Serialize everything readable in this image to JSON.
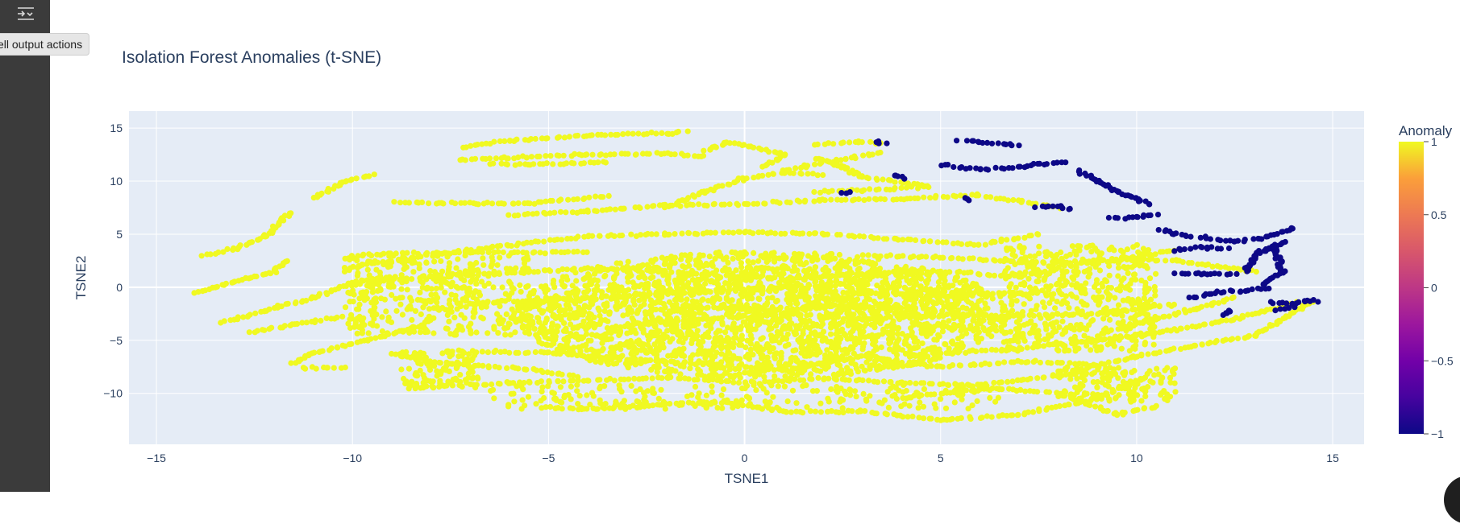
{
  "gutter": {
    "tooltip": "cell output actions",
    "button_icon": "output-actions-icon"
  },
  "colors": {
    "plot_bg": "#e5ecf6",
    "grid": "#ffffff",
    "normal": "#f0f921",
    "anomaly": "#0d0887",
    "text": "#2a3f5f"
  },
  "chart_data": {
    "type": "scatter",
    "title": "Isolation Forest Anomalies (t-SNE)",
    "xlabel": "TSNE1",
    "ylabel": "TSNE2",
    "xlim": [
      -15.7,
      15.8
    ],
    "ylim": [
      -14.8,
      16.6
    ],
    "xticks": [
      -15,
      -10,
      -5,
      0,
      5,
      10,
      15
    ],
    "yticks": [
      -10,
      -5,
      0,
      5,
      10,
      15
    ],
    "grid": true,
    "colorbar": {
      "title": "Anomaly",
      "colorscale": "plasma",
      "range": [
        -1,
        1
      ],
      "ticks": [
        1,
        0.5,
        0,
        -0.5,
        -1
      ],
      "tick_labels": [
        "1",
        "0.5",
        "0",
        "−0.5",
        "−1"
      ]
    },
    "series": [
      {
        "anomaly": 1,
        "approx_points": 4200,
        "curves": [
          [
            [
              -14,
              -0.5
            ],
            [
              -13,
              0.5
            ],
            [
              -12,
              1.5
            ],
            [
              -11.7,
              2.5
            ]
          ],
          [
            [
              -13.8,
              3
            ],
            [
              -13,
              3.6
            ],
            [
              -12.2,
              4.8
            ],
            [
              -11.6,
              7
            ]
          ],
          [
            [
              -11,
              8.4
            ],
            [
              -10.2,
              10
            ],
            [
              -9.5,
              10.6
            ]
          ],
          [
            [
              -13.3,
              -3.3
            ],
            [
              -12.2,
              -2.2
            ],
            [
              -11,
              -1
            ],
            [
              -10,
              0.4
            ],
            [
              -9,
              1
            ]
          ],
          [
            [
              -12.6,
              -4.3
            ],
            [
              -11.4,
              -3.5
            ],
            [
              -10.3,
              -2.8
            ]
          ],
          [
            [
              -11.5,
              -7.2
            ],
            [
              -11,
              -6.2
            ],
            [
              -9.6,
              -5
            ],
            [
              -8.2,
              -3.6
            ]
          ],
          [
            [
              -11.3,
              -7.6
            ],
            [
              -10.2,
              -7.6
            ]
          ],
          [
            [
              -10,
              2
            ],
            [
              -8,
              3
            ],
            [
              -6,
              4
            ],
            [
              -4,
              4.8
            ],
            [
              -2,
              5
            ],
            [
              0,
              5.2
            ],
            [
              2,
              5
            ],
            [
              4,
              4.5
            ],
            [
              6,
              4
            ],
            [
              7.5,
              5
            ]
          ],
          [
            [
              -9.8,
              3.1
            ],
            [
              -7,
              3.3
            ],
            [
              -4,
              3.3
            ]
          ],
          [
            [
              -9.5,
              0.6
            ],
            [
              -7,
              1.2
            ],
            [
              -5,
              1.6
            ],
            [
              -3,
              1.8
            ],
            [
              -1,
              1.2
            ],
            [
              1,
              0.8
            ],
            [
              3,
              1.2
            ],
            [
              5,
              1.5
            ],
            [
              7,
              1
            ],
            [
              9,
              2.6
            ],
            [
              11,
              2.5
            ],
            [
              13,
              1.5
            ]
          ],
          [
            [
              -6,
              6.8
            ],
            [
              -4,
              7.2
            ],
            [
              -2,
              7.7
            ],
            [
              0,
              7.8
            ],
            [
              2,
              8.2
            ],
            [
              4,
              8.3
            ],
            [
              6,
              8.7
            ],
            [
              8,
              7.5
            ]
          ],
          [
            [
              -8.9,
              8
            ],
            [
              -7,
              7.9
            ],
            [
              -5.5,
              7.9
            ],
            [
              -3.5,
              8.6
            ]
          ],
          [
            [
              -7.3,
              12
            ],
            [
              -6,
              12.2
            ],
            [
              -4,
              12.5
            ],
            [
              -2,
              12.6
            ],
            [
              -1,
              12.3
            ]
          ],
          [
            [
              -6.5,
              11.6
            ],
            [
              -5.5,
              11.6
            ],
            [
              -3.5,
              11.8
            ]
          ],
          [
            [
              -7.2,
              13.2
            ],
            [
              -6,
              13.8
            ],
            [
              -4,
              14.3
            ],
            [
              -2,
              14.5
            ],
            [
              -1.5,
              14.7
            ]
          ],
          [
            [
              -1,
              12.8
            ],
            [
              -0.5,
              13.6
            ],
            [
              0,
              13.4
            ],
            [
              1,
              12.5
            ],
            [
              0.5,
              11.4
            ]
          ],
          [
            [
              -2,
              7.5
            ],
            [
              -1,
              9
            ],
            [
              0,
              10.2
            ],
            [
              1,
              10.8
            ],
            [
              2,
              10.6
            ]
          ],
          [
            [
              1,
              11
            ],
            [
              2.5,
              12
            ],
            [
              3.5,
              12.7
            ]
          ],
          [
            [
              1.8,
              13.5
            ],
            [
              3,
              13.7
            ],
            [
              3.5,
              13.6
            ]
          ],
          [
            [
              1.8,
              12.2
            ],
            [
              2.5,
              11.3
            ],
            [
              3,
              10.4
            ],
            [
              4.7,
              9.5
            ]
          ],
          [
            [
              1.8,
              9
            ],
            [
              3,
              9.1
            ],
            [
              4.7,
              9.5
            ]
          ],
          [
            [
              -5.2,
              -11.3
            ],
            [
              -4,
              -11.5
            ],
            [
              -2,
              -11
            ],
            [
              -0.5,
              -10.8
            ],
            [
              1,
              -11.7
            ],
            [
              3,
              -11.7
            ],
            [
              5,
              -12.5
            ],
            [
              7,
              -12
            ],
            [
              9,
              -10.5
            ],
            [
              10.2,
              -8.5
            ]
          ],
          [
            [
              -8.5,
              -9.5
            ],
            [
              -6,
              -9
            ],
            [
              -4,
              -8.8
            ],
            [
              -2,
              -8.5
            ],
            [
              0,
              -9
            ],
            [
              2,
              -8.6
            ],
            [
              4,
              -9
            ],
            [
              6,
              -9.2
            ],
            [
              8,
              -8.3
            ],
            [
              10,
              -8
            ]
          ],
          [
            [
              -7.3,
              -6
            ],
            [
              -5,
              -6.2
            ],
            [
              -3,
              -6.8
            ],
            [
              -1,
              -7.2
            ],
            [
              1,
              -7.8
            ],
            [
              3,
              -6.5
            ],
            [
              5,
              -7.5
            ],
            [
              7,
              -7
            ],
            [
              9,
              -7.3
            ]
          ],
          [
            [
              5,
              -6.2
            ],
            [
              7,
              -5.8
            ],
            [
              9,
              -5
            ],
            [
              11,
              -4
            ],
            [
              12.5,
              -3
            ],
            [
              14,
              -1.5
            ]
          ],
          [
            [
              9,
              -4.5
            ],
            [
              10.5,
              -3
            ],
            [
              11.5,
              -2
            ],
            [
              12.5,
              -1
            ]
          ],
          [
            [
              8.5,
              -7.8
            ],
            [
              10,
              -6.5
            ],
            [
              11.5,
              -5.5
            ],
            [
              13,
              -4.5
            ],
            [
              14.5,
              -1.3
            ]
          ],
          [
            [
              4,
              -10.5
            ],
            [
              5,
              -10
            ],
            [
              6.5,
              -9.5
            ],
            [
              8,
              -10
            ],
            [
              9.5,
              -12
            ],
            [
              10.5,
              -11.2
            ]
          ],
          [
            [
              -3,
              -3.5
            ],
            [
              -1,
              -3
            ],
            [
              1,
              -2.5
            ],
            [
              3,
              -3
            ],
            [
              5,
              -2.6
            ],
            [
              7,
              -2.7
            ],
            [
              9,
              -2.5
            ],
            [
              11,
              -1.6
            ]
          ],
          [
            [
              -7,
              -1.5
            ],
            [
              -5,
              -1.2
            ],
            [
              -3,
              -0.8
            ],
            [
              -1,
              -0.4
            ],
            [
              1,
              0
            ],
            [
              3,
              -0.6
            ],
            [
              5,
              -0.8
            ],
            [
              7,
              -0.5
            ]
          ],
          [
            [
              3,
              3
            ],
            [
              5,
              2.8
            ],
            [
              7,
              2.4
            ],
            [
              9,
              2.3
            ],
            [
              11,
              3.5
            ]
          ],
          [
            [
              -9,
              -6.3
            ],
            [
              -7.6,
              -7.2
            ],
            [
              -5.5,
              -7.7
            ],
            [
              -4.3,
              -8.4
            ]
          ],
          [
            [
              -1.5,
              -1.8
            ],
            [
              0.5,
              -2.2
            ],
            [
              2.5,
              -1.8
            ],
            [
              4.5,
              -2
            ]
          ]
        ],
        "blob": {
          "cx": 0.4,
          "cy": -2.6,
          "rx": 6.3,
          "ry": 6.0,
          "count": 2600
        },
        "scatter_regions": [
          {
            "x": [
              -10.2,
              -5.5
            ],
            "y": [
              -4.5,
              3
            ],
            "count": 420
          },
          {
            "x": [
              6.5,
              10.5
            ],
            "y": [
              -6,
              4
            ],
            "count": 520
          },
          {
            "x": [
              -8.8,
              -6.8
            ],
            "y": [
              -9.5,
              -6
            ],
            "count": 110
          },
          {
            "x": [
              8,
              11
            ],
            "y": [
              -10.8,
              -7.5
            ],
            "count": 140
          },
          {
            "x": [
              -6.5,
              6.5
            ],
            "y": [
              -11.5,
              -9.2
            ],
            "count": 220
          }
        ]
      },
      {
        "anomaly": -1,
        "approx_points": 300,
        "curves": [
          [
            [
              5.5,
              13.9
            ],
            [
              6,
              13.7
            ],
            [
              7,
              13.3
            ]
          ],
          [
            [
              5,
              11.5
            ],
            [
              6,
              11.1
            ],
            [
              7,
              11.3
            ],
            [
              7.5,
              11.6
            ],
            [
              8.2,
              11.8
            ]
          ],
          [
            [
              8.5,
              11
            ],
            [
              9,
              10
            ],
            [
              9.5,
              9
            ],
            [
              10,
              8.4
            ],
            [
              10.3,
              7.8
            ]
          ],
          [
            [
              9.3,
              6.5
            ],
            [
              10,
              6.6
            ],
            [
              10.5,
              6.9
            ]
          ],
          [
            [
              7.4,
              7.6
            ],
            [
              8,
              7.6
            ],
            [
              8.3,
              7.3
            ]
          ],
          [
            [
              10.6,
              5.4
            ],
            [
              11,
              5
            ],
            [
              11.8,
              4.6
            ],
            [
              12.5,
              4.3
            ],
            [
              13.2,
              4.6
            ],
            [
              14,
              5.6
            ]
          ],
          [
            [
              10.9,
              3.5
            ],
            [
              11.6,
              3.8
            ],
            [
              12.3,
              3.6
            ]
          ],
          [
            [
              11,
              1.3
            ],
            [
              11.7,
              1.3
            ],
            [
              12.5,
              1.3
            ]
          ],
          [
            [
              12.8,
              1.5
            ],
            [
              13,
              3
            ],
            [
              13.5,
              3.8
            ],
            [
              13.7,
              1.5
            ],
            [
              13.2,
              0.2
            ]
          ],
          [
            [
              11.4,
              -1
            ],
            [
              12,
              -0.5
            ],
            [
              12.6,
              -0.3
            ],
            [
              13.4,
              -0.1
            ]
          ],
          [
            [
              13.4,
              -1.4
            ],
            [
              14,
              -1.6
            ],
            [
              14.4,
              -1.2
            ],
            [
              14.6,
              -1.3
            ]
          ],
          [
            [
              13.6,
              -2.2
            ],
            [
              14,
              -1.9
            ]
          ],
          [
            [
              3.3,
              13.6
            ],
            [
              3.6,
              13.6
            ]
          ],
          [
            [
              3.8,
              10.6
            ],
            [
              4.1,
              10.3
            ]
          ],
          [
            [
              2.5,
              8.8
            ],
            [
              2.6,
              8.9
            ]
          ],
          [
            [
              5.6,
              8.4
            ],
            [
              5.8,
              8.2
            ]
          ],
          [
            [
              12.2,
              -2.6
            ],
            [
              12.4,
              -2.2
            ]
          ],
          [
            [
              13.2,
              3.4
            ],
            [
              13.8,
              4.3
            ]
          ]
        ]
      }
    ]
  }
}
